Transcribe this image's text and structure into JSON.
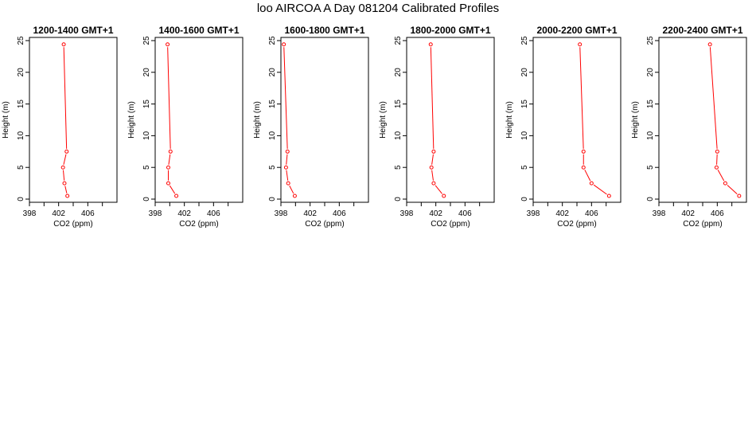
{
  "title": "loo AIRCOA A  Day 081204  Calibrated Profiles",
  "chart_data": [
    {
      "type": "line",
      "title": "1200-1400 GMT+1",
      "xlabel": "CO2 (ppm)",
      "ylabel": "Height (m)",
      "xlim": [
        398,
        410
      ],
      "ylim": [
        -0.5,
        25.5
      ],
      "x_ticks": [
        398,
        400,
        402,
        404,
        406,
        408
      ],
      "x_tick_labels": [
        "398",
        "402",
        "406"
      ],
      "y_ticks": [
        0,
        5,
        10,
        15,
        20,
        25
      ],
      "series": [
        {
          "points": [
            [
              403.2,
              0.5
            ],
            [
              402.8,
              2.5
            ],
            [
              402.6,
              5
            ],
            [
              403.1,
              7.5
            ],
            [
              402.7,
              24.4
            ]
          ]
        }
      ]
    },
    {
      "type": "line",
      "title": "1400-1600 GMT+1",
      "xlabel": "CO2 (ppm)",
      "ylabel": "Height (m)",
      "xlim": [
        398,
        410
      ],
      "ylim": [
        -0.5,
        25.5
      ],
      "x_ticks": [
        398,
        400,
        402,
        404,
        406,
        408
      ],
      "x_tick_labels": [
        "398",
        "402",
        "406"
      ],
      "y_ticks": [
        0,
        5,
        10,
        15,
        20,
        25
      ],
      "series": [
        {
          "points": [
            [
              400.9,
              0.5
            ],
            [
              399.8,
              2.5
            ],
            [
              399.8,
              5
            ],
            [
              400.1,
              7.5
            ],
            [
              399.7,
              24.4
            ]
          ]
        }
      ]
    },
    {
      "type": "line",
      "title": "1600-1800 GMT+1",
      "xlabel": "CO2 (ppm)",
      "ylabel": "Height (m)",
      "xlim": [
        398,
        410
      ],
      "ylim": [
        -0.5,
        25.5
      ],
      "x_ticks": [
        398,
        400,
        402,
        404,
        406,
        408
      ],
      "x_tick_labels": [
        "398",
        "402",
        "406"
      ],
      "y_ticks": [
        0,
        5,
        10,
        15,
        20,
        25
      ],
      "series": [
        {
          "points": [
            [
              399.9,
              0.5
            ],
            [
              399.0,
              2.5
            ],
            [
              398.7,
              5
            ],
            [
              398.9,
              7.5
            ],
            [
              398.4,
              24.4
            ]
          ]
        }
      ]
    },
    {
      "type": "line",
      "title": "1800-2000 GMT+1",
      "xlabel": "CO2 (ppm)",
      "ylabel": "Height (m)",
      "xlim": [
        398,
        410
      ],
      "ylim": [
        -0.5,
        25.5
      ],
      "x_ticks": [
        398,
        400,
        402,
        404,
        406,
        408
      ],
      "x_tick_labels": [
        "398",
        "402",
        "406"
      ],
      "y_ticks": [
        0,
        5,
        10,
        15,
        20,
        25
      ],
      "series": [
        {
          "points": [
            [
              403.1,
              0.5
            ],
            [
              401.7,
              2.5
            ],
            [
              401.4,
              5
            ],
            [
              401.7,
              7.5
            ],
            [
              401.3,
              24.4
            ]
          ]
        }
      ]
    },
    {
      "type": "line",
      "title": "2000-2200 GMT+1",
      "xlabel": "CO2 (ppm)",
      "ylabel": "Height (m)",
      "xlim": [
        398,
        410
      ],
      "ylim": [
        -0.5,
        25.5
      ],
      "x_ticks": [
        398,
        400,
        402,
        404,
        406,
        408
      ],
      "x_tick_labels": [
        "398",
        "402",
        "406"
      ],
      "y_ticks": [
        0,
        5,
        10,
        15,
        20,
        25
      ],
      "series": [
        {
          "points": [
            [
              408.4,
              0.5
            ],
            [
              406.0,
              2.5
            ],
            [
              404.9,
              5
            ],
            [
              404.9,
              7.5
            ],
            [
              404.4,
              24.4
            ]
          ]
        }
      ]
    },
    {
      "type": "line",
      "title": "2200-2400 GMT+1",
      "xlabel": "CO2 (ppm)",
      "ylabel": "Height (m)",
      "xlim": [
        398,
        410
      ],
      "ylim": [
        -0.5,
        25.5
      ],
      "x_ticks": [
        398,
        400,
        402,
        404,
        406,
        408
      ],
      "x_tick_labels": [
        "398",
        "402",
        "406"
      ],
      "y_ticks": [
        0,
        5,
        10,
        15,
        20,
        25
      ],
      "series": [
        {
          "points": [
            [
              409.0,
              0.5
            ],
            [
              407.1,
              2.5
            ],
            [
              405.9,
              5
            ],
            [
              406.0,
              7.5
            ],
            [
              405.0,
              24.4
            ]
          ]
        }
      ]
    }
  ],
  "colors": {
    "series_line": "#ff0000",
    "axes": "#000000",
    "background": "#ffffff"
  }
}
